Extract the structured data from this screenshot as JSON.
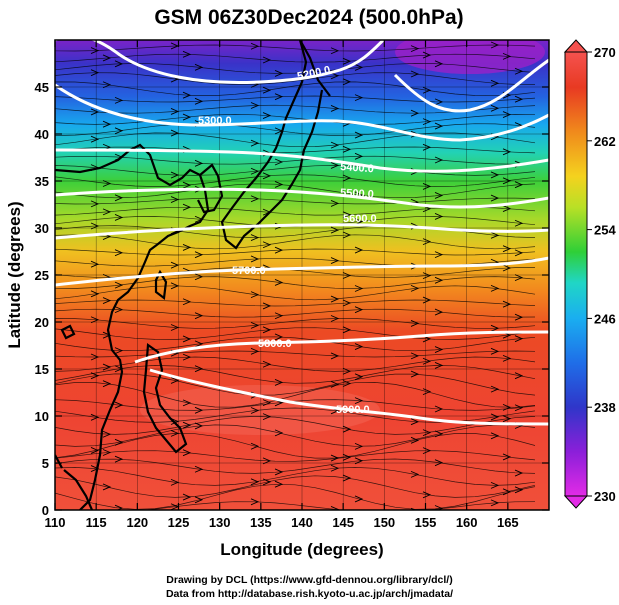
{
  "title": "GSM 06Z30Dec2024 (500.0hPa)",
  "xaxis": {
    "label": "Longitude (degrees)",
    "ticks": [
      "110",
      "115",
      "120",
      "125",
      "130",
      "135",
      "140",
      "145",
      "150",
      "155",
      "160",
      "165"
    ],
    "range": [
      110,
      170
    ]
  },
  "yaxis": {
    "label": "Latitude  (degrees)",
    "ticks": [
      "0",
      "5",
      "10",
      "15",
      "20",
      "25",
      "30",
      "35",
      "40",
      "45"
    ],
    "range": [
      0,
      50
    ]
  },
  "colorbar": {
    "ticks": [
      "230",
      "238",
      "246",
      "254",
      "262",
      "270"
    ],
    "range": [
      230,
      270
    ],
    "colors": [
      "#e22be6",
      "#8b1fd9",
      "#2f36c9",
      "#1a8cf0",
      "#20d6c6",
      "#2fcf37",
      "#b8e026",
      "#f4d21e",
      "#f08a1c",
      "#e83a22",
      "#f5524f"
    ]
  },
  "contours": [
    {
      "label": "5200.0"
    },
    {
      "label": "5300.0"
    },
    {
      "label": "5400.0"
    },
    {
      "label": "5500.0"
    },
    {
      "label": "5600.0"
    },
    {
      "label": "5700.0"
    },
    {
      "label": "5800.0"
    },
    {
      "label": "5900.0"
    }
  ],
  "credits": {
    "line1": "Drawing by DCL (https://www.gfd-dennou.org/library/dcl/)",
    "line2": "Data from http://database.rish.kyoto-u.ac.jp/arch/jmadata/"
  },
  "colors": {
    "contour": "#ffffff",
    "coast": "#000000",
    "streamline": "#000000"
  }
}
